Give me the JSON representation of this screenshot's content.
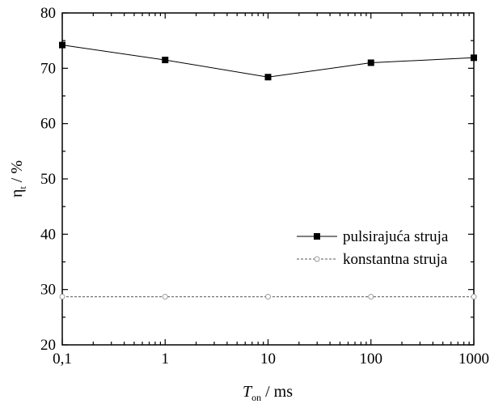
{
  "chart_data": {
    "type": "line",
    "title": "",
    "xscale": "log",
    "xlim": [
      0.1,
      1000
    ],
    "ylim": [
      20,
      80
    ],
    "xticks": [
      0.1,
      1,
      10,
      100,
      1000
    ],
    "xtick_labels": [
      "0,1",
      "1",
      "10",
      "100",
      "1000"
    ],
    "yticks": [
      20,
      30,
      40,
      50,
      60,
      70,
      80
    ],
    "ytick_labels": [
      "20",
      "30",
      "40",
      "50",
      "60",
      "70",
      "80"
    ],
    "ylabel": {
      "main": "η",
      "sub": "t",
      "suffix": " / %"
    },
    "xlabel": {
      "main": "T",
      "sub": "on",
      "suffix": " / ms"
    },
    "grid": false,
    "legend_position": "right-lower-middle",
    "series": [
      {
        "name": "pulsirajuća struja",
        "marker": "filled-square",
        "line_style": "solid",
        "color": "#000000",
        "x": [
          0.1,
          1,
          10,
          100,
          1000
        ],
        "y": [
          74.2,
          71.5,
          68.4,
          71.0,
          71.9
        ]
      },
      {
        "name": "konstantna struja",
        "marker": "open-circle",
        "line_style": "dashed",
        "color": "#555555",
        "marker_color": "#999999",
        "x": [
          0.1,
          1,
          10,
          100,
          1000
        ],
        "y": [
          28.7,
          28.7,
          28.7,
          28.7,
          28.7
        ]
      }
    ]
  }
}
